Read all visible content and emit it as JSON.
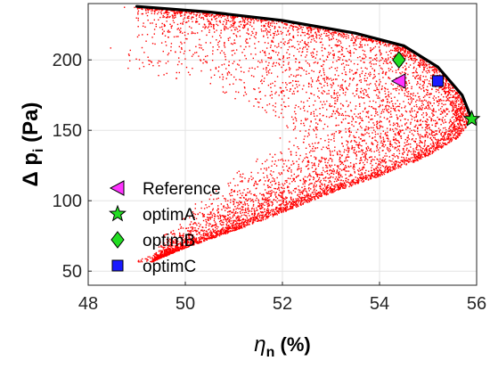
{
  "chart_data": {
    "type": "scatter",
    "xlabel": {
      "symbol": "η",
      "subscript": "n",
      "suffix": " (%)"
    },
    "ylabel": {
      "prefix": "Δ p",
      "subscript": "i",
      "suffix": " (Pa)"
    },
    "xlim": [
      48,
      56
    ],
    "ylim": [
      40,
      240
    ],
    "xticks": [
      48,
      50,
      52,
      54,
      56
    ],
    "yticks": [
      50,
      100,
      150,
      200
    ],
    "grid": true,
    "legend_position": "lower-left",
    "scatter_cloud": {
      "color": "#ff0000",
      "y_range": [
        57,
        238
      ],
      "upper_front": [
        [
          49.0,
          238
        ],
        [
          50.5,
          234
        ],
        [
          52.0,
          228
        ],
        [
          53.5,
          219
        ],
        [
          54.5,
          210
        ],
        [
          55.2,
          195
        ],
        [
          55.7,
          175
        ],
        [
          55.9,
          158
        ]
      ],
      "lower_front": [
        [
          55.9,
          158
        ],
        [
          55.6,
          145
        ],
        [
          55.0,
          132
        ],
        [
          54.0,
          118
        ],
        [
          53.0,
          106
        ],
        [
          52.0,
          92
        ],
        [
          51.0,
          79
        ],
        [
          50.0,
          67
        ],
        [
          49.3,
          57
        ]
      ],
      "left_boundary": [
        [
          49.3,
          57
        ],
        [
          49.5,
          75
        ],
        [
          50.0,
          95
        ],
        [
          50.8,
          115
        ],
        [
          51.5,
          135
        ],
        [
          52.0,
          150
        ],
        [
          51.2,
          170
        ],
        [
          49.5,
          188
        ],
        [
          48.0,
          200
        ],
        [
          48.6,
          213
        ],
        [
          49.0,
          238
        ]
      ],
      "pareto_front": [
        [
          49.0,
          238
        ],
        [
          50.5,
          234
        ],
        [
          52.0,
          228
        ],
        [
          53.5,
          219
        ],
        [
          54.5,
          210
        ],
        [
          55.2,
          195
        ],
        [
          55.7,
          175
        ],
        [
          55.9,
          158
        ]
      ]
    },
    "series": [
      {
        "name": "Reference",
        "x": 54.4,
        "y": 185,
        "marker": "triangle-left",
        "color": "#ff33ff"
      },
      {
        "name": "optimA",
        "x": 55.9,
        "y": 158,
        "marker": "star",
        "color": "#22dd22"
      },
      {
        "name": "optimB",
        "x": 54.4,
        "y": 200,
        "marker": "diamond",
        "color": "#22dd22"
      },
      {
        "name": "optimC",
        "x": 55.2,
        "y": 185,
        "marker": "square",
        "color": "#1a1aff"
      }
    ]
  }
}
